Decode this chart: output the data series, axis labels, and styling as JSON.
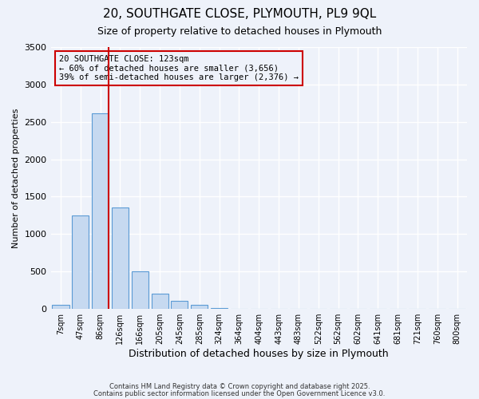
{
  "title": "20, SOUTHGATE CLOSE, PLYMOUTH, PL9 9QL",
  "subtitle": "Size of property relative to detached houses in Plymouth",
  "xlabel": "Distribution of detached houses by size in Plymouth",
  "ylabel": "Number of detached properties",
  "bin_labels": [
    "7sqm",
    "47sqm",
    "86sqm",
    "126sqm",
    "166sqm",
    "205sqm",
    "245sqm",
    "285sqm",
    "324sqm",
    "364sqm",
    "404sqm",
    "443sqm",
    "483sqm",
    "522sqm",
    "562sqm",
    "602sqm",
    "641sqm",
    "681sqm",
    "721sqm",
    "760sqm",
    "800sqm"
  ],
  "bar_values": [
    50,
    1250,
    2610,
    1360,
    500,
    200,
    110,
    50,
    15,
    5,
    0,
    0,
    0,
    0,
    0,
    0,
    0,
    0,
    0,
    0,
    0
  ],
  "bar_color": "#c6d9f0",
  "bar_edge_color": "#5b9bd5",
  "vline_pos": 2.425,
  "vline_color": "#cc0000",
  "annotation_title": "20 SOUTHGATE CLOSE: 123sqm",
  "annotation_line1": "← 60% of detached houses are smaller (3,656)",
  "annotation_line2": "39% of semi-detached houses are larger (2,376) →",
  "annotation_box_color": "#cc0000",
  "ylim": [
    0,
    3500
  ],
  "yticks": [
    0,
    500,
    1000,
    1500,
    2000,
    2500,
    3000,
    3500
  ],
  "footnote1": "Contains HM Land Registry data © Crown copyright and database right 2025.",
  "footnote2": "Contains public sector information licensed under the Open Government Licence v3.0.",
  "bg_color": "#eef2fa",
  "grid_color": "#ffffff"
}
